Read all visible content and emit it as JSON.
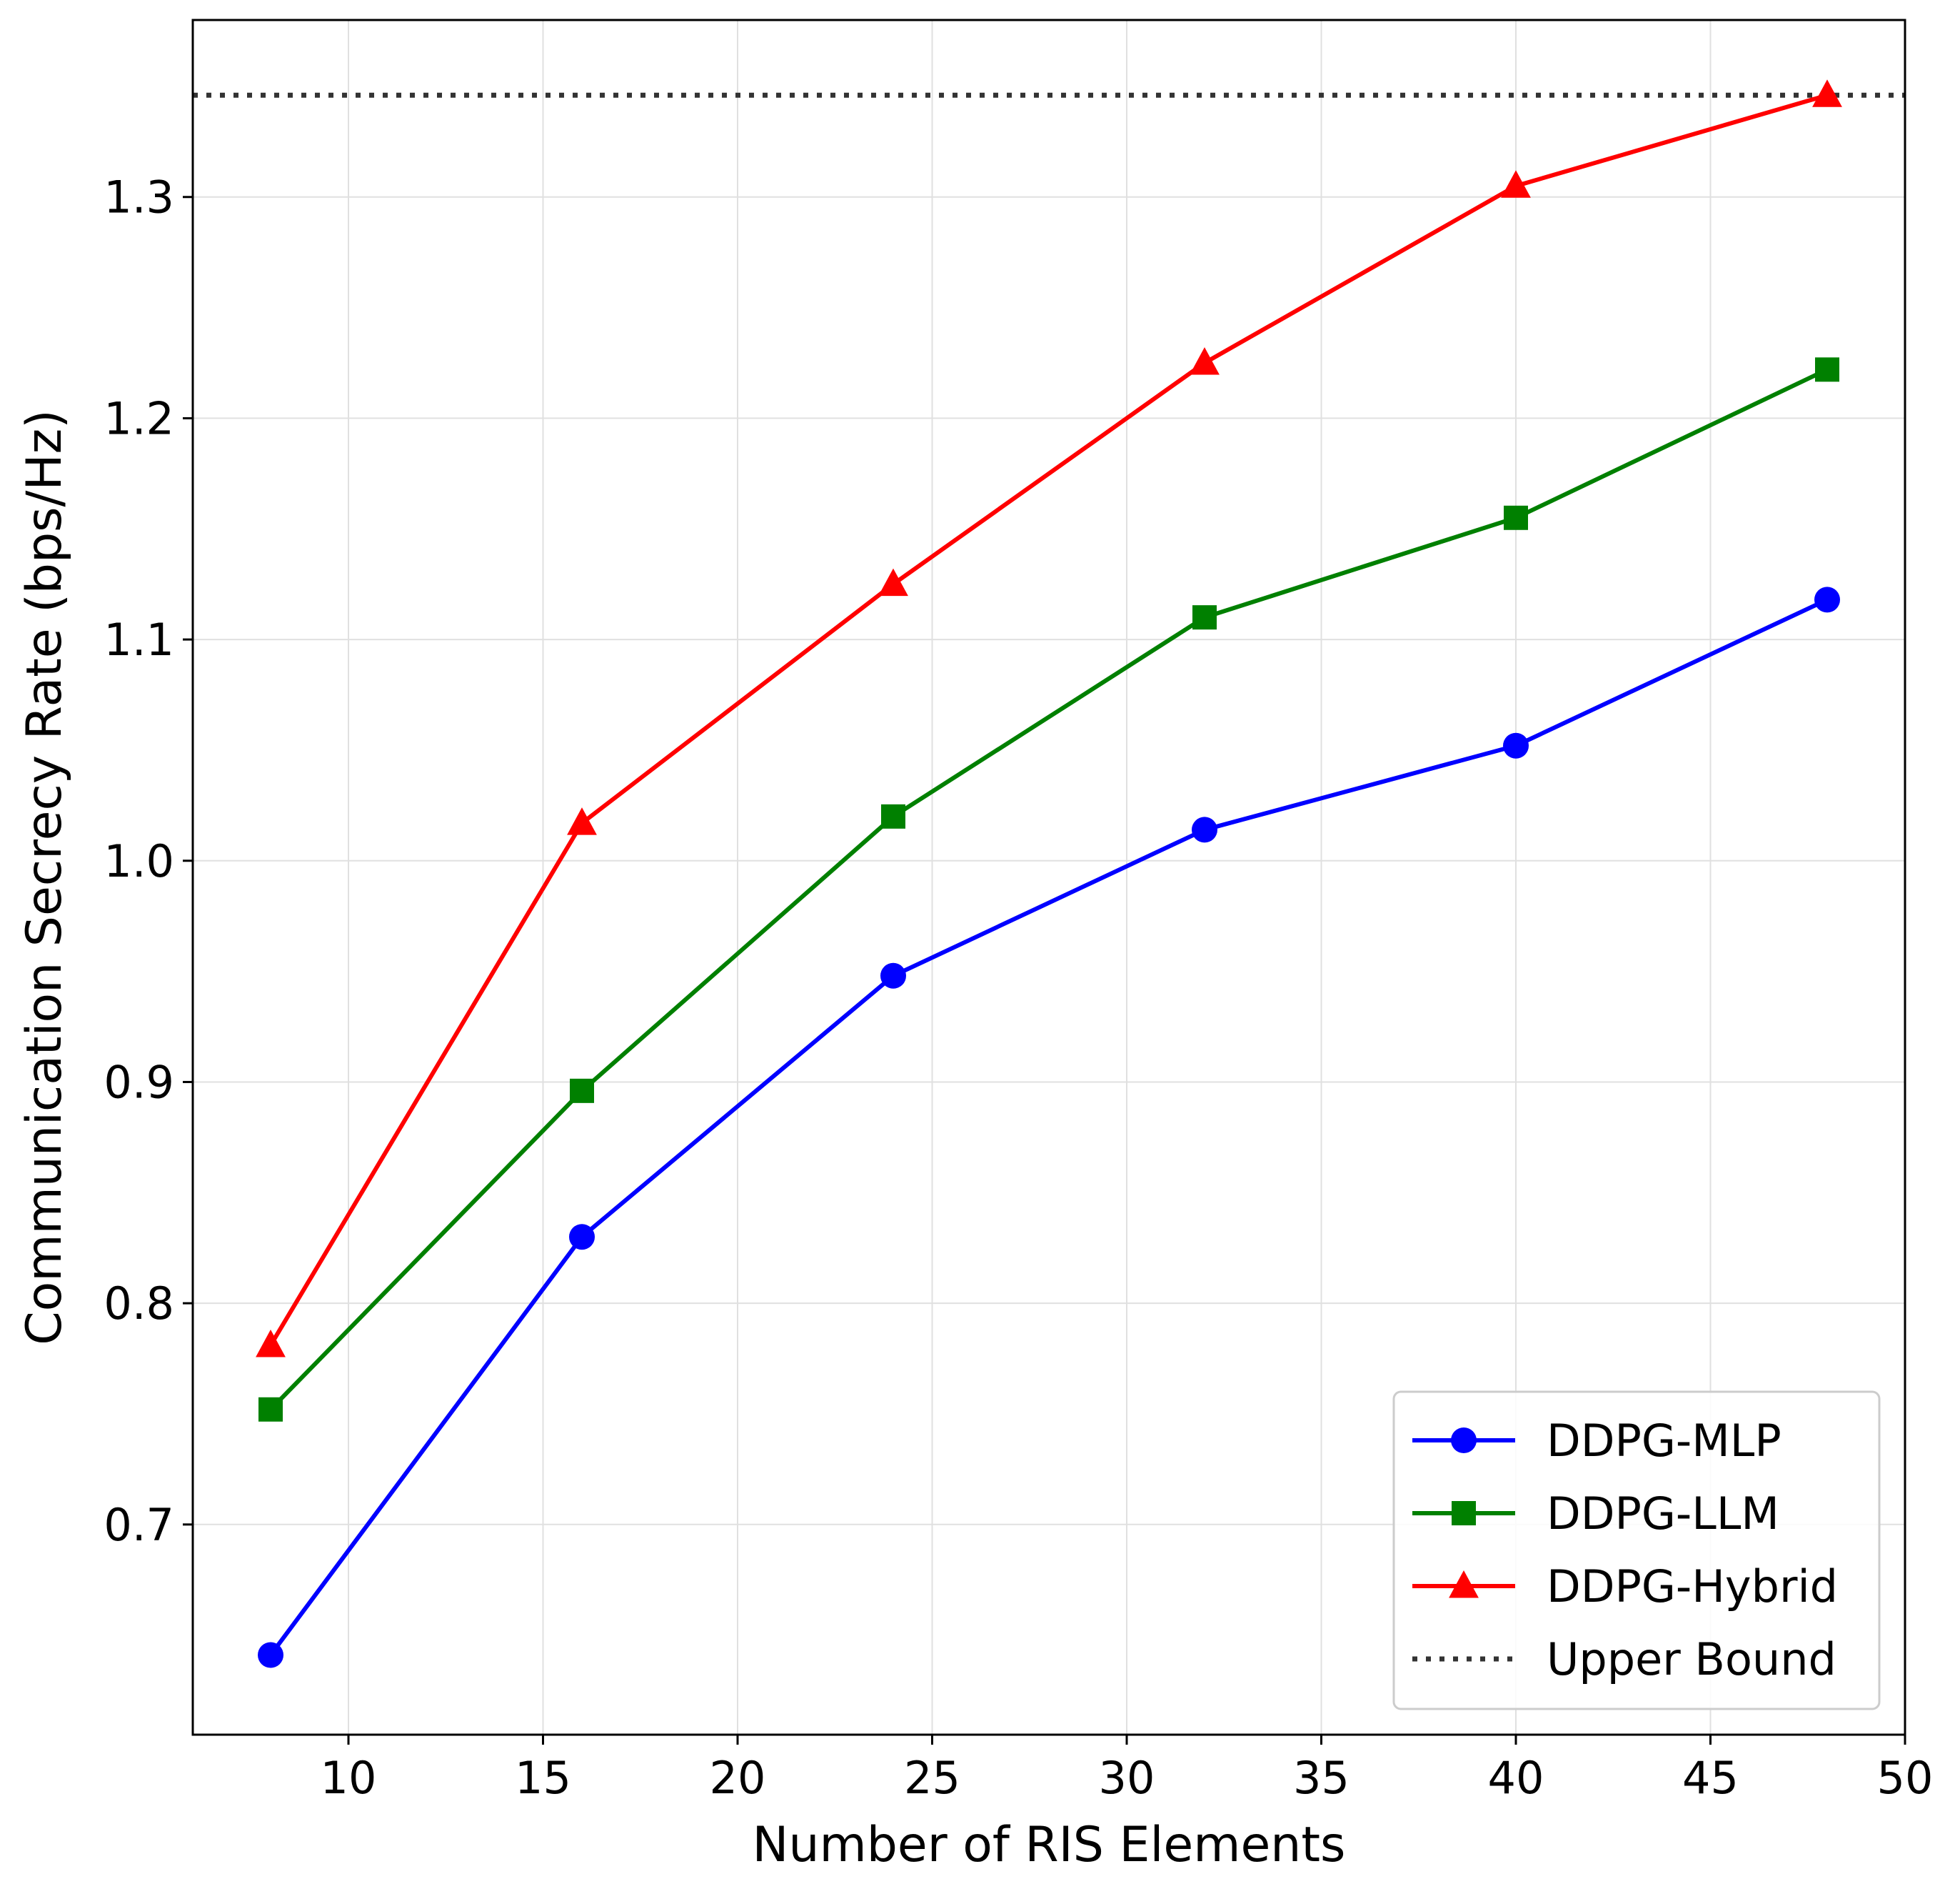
{
  "chart_data": {
    "type": "line",
    "xlabel": "Number of RIS Elements",
    "ylabel": "Communication Secrecy Rate (bps/Hz)",
    "xlim": [
      6,
      50
    ],
    "ylim": [
      0.605,
      1.38
    ],
    "xticks": [
      10,
      15,
      20,
      25,
      30,
      35,
      40,
      45,
      50
    ],
    "yticks": [
      0.7,
      0.8,
      0.9,
      1.0,
      1.1,
      1.2,
      1.3
    ],
    "grid": true,
    "legend_position": "lower-right",
    "x": [
      8,
      16,
      24,
      32,
      40,
      48
    ],
    "series": [
      {
        "name": "DDPG-MLP",
        "color": "#0000ff",
        "marker": "circle",
        "values": [
          0.641,
          0.83,
          0.948,
          1.014,
          1.052,
          1.118
        ]
      },
      {
        "name": "DDPG-LLM",
        "color": "#008000",
        "marker": "square",
        "values": [
          0.752,
          0.896,
          1.02,
          1.11,
          1.155,
          1.222
        ]
      },
      {
        "name": "DDPG-Hybrid",
        "color": "#ff0000",
        "marker": "triangle",
        "values": [
          0.781,
          1.017,
          1.125,
          1.225,
          1.305,
          1.346
        ]
      }
    ],
    "reference_lines": [
      {
        "name": "Upper Bound",
        "y": 1.346,
        "color": "#333333",
        "style": "dotted"
      }
    ]
  }
}
